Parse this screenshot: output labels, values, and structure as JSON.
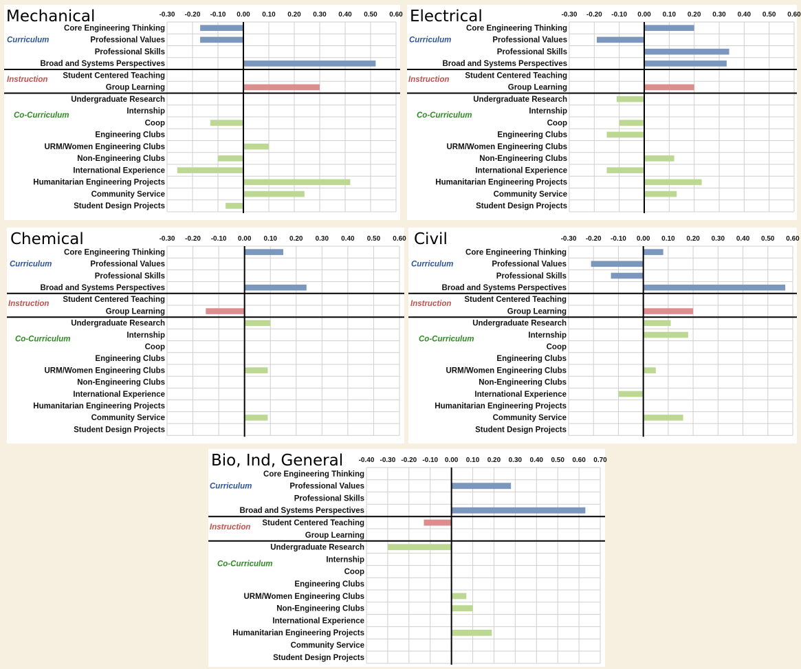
{
  "colors": {
    "curriculum": "#7b97bd",
    "instruction": "#dc8d8d",
    "co_curriculum": "#bcd892",
    "curriculum_label": "#2f5597",
    "instruction_label": "#c0504d",
    "co_curriculum_label": "#2e8b22"
  },
  "group_labels": {
    "curriculum": "Curriculum",
    "instruction": "Instruction",
    "co_curriculum": "Co-Curriculum"
  },
  "chart_data": [
    {
      "type": "bar",
      "orientation": "horizontal",
      "title": "Mechanical",
      "xlim": [
        -0.3,
        0.6
      ],
      "ticks": [
        "-0.30",
        "-0.20",
        "-0.10",
        "0.00",
        "0.10",
        "0.20",
        "0.30",
        "0.40",
        "0.50",
        "0.60"
      ],
      "grid": true,
      "categories": [
        "Core Engineering Thinking",
        "Professional Values",
        "Professional Skills",
        "Broad and Systems Perspectives",
        "Student Centered Teaching",
        "Group Learning",
        "Undergraduate Research",
        "Internship",
        "Coop",
        "Engineering Clubs",
        "URM/Women Engineering Clubs",
        "Non-Engineering Clubs",
        "International Experience",
        "Humanitarian Engineering Projects",
        "Community Service",
        "Student Design Projects"
      ],
      "groups": [
        "curriculum",
        "curriculum",
        "curriculum",
        "curriculum",
        "instruction",
        "instruction",
        "co_curriculum",
        "co_curriculum",
        "co_curriculum",
        "co_curriculum",
        "co_curriculum",
        "co_curriculum",
        "co_curriculum",
        "co_curriculum",
        "co_curriculum",
        "co_curriculum"
      ],
      "values": [
        -0.17,
        -0.17,
        null,
        0.52,
        null,
        0.3,
        null,
        null,
        -0.13,
        null,
        0.1,
        -0.1,
        -0.26,
        0.42,
        0.24,
        -0.07
      ]
    },
    {
      "type": "bar",
      "orientation": "horizontal",
      "title": "Electrical",
      "xlim": [
        -0.3,
        0.6
      ],
      "ticks": [
        "-0.30",
        "-0.20",
        "-0.10",
        "0.00",
        "0.10",
        "0.20",
        "0.30",
        "0.40",
        "0.50",
        "0.60"
      ],
      "grid": true,
      "categories": [
        "Core Engineering Thinking",
        "Professional Values",
        "Professional Skills",
        "Broad and Systems Perspectives",
        "Student Centered Teaching",
        "Group Learning",
        "Undergraduate Research",
        "Internship",
        "Coop",
        "Engineering Clubs",
        "URM/Women Engineering Clubs",
        "Non-Engineering Clubs",
        "International Experience",
        "Humanitarian Engineering Projects",
        "Community Service",
        "Student Design Projects"
      ],
      "groups": [
        "curriculum",
        "curriculum",
        "curriculum",
        "curriculum",
        "instruction",
        "instruction",
        "co_curriculum",
        "co_curriculum",
        "co_curriculum",
        "co_curriculum",
        "co_curriculum",
        "co_curriculum",
        "co_curriculum",
        "co_curriculum",
        "co_curriculum",
        "co_curriculum"
      ],
      "values": [
        0.2,
        -0.19,
        0.34,
        0.33,
        null,
        0.2,
        -0.11,
        null,
        -0.1,
        -0.15,
        null,
        0.12,
        -0.15,
        0.23,
        0.13,
        null
      ]
    },
    {
      "type": "bar",
      "orientation": "horizontal",
      "title": "Chemical",
      "xlim": [
        -0.3,
        0.6
      ],
      "ticks": [
        "-0.30",
        "-0.20",
        "-0.10",
        "0.00",
        "0.10",
        "0.20",
        "0.30",
        "0.40",
        "0.50",
        "0.60"
      ],
      "grid": true,
      "categories": [
        "Core Engineering Thinking",
        "Professional Values",
        "Professional Skills",
        "Broad and Systems Perspectives",
        "Student Centered Teaching",
        "Group Learning",
        "Undergraduate Research",
        "Internship",
        "Coop",
        "Engineering Clubs",
        "URM/Women Engineering Clubs",
        "Non-Engineering Clubs",
        "International Experience",
        "Humanitarian Engineering Projects",
        "Community Service",
        "Student Design Projects"
      ],
      "groups": [
        "curriculum",
        "curriculum",
        "curriculum",
        "curriculum",
        "instruction",
        "instruction",
        "co_curriculum",
        "co_curriculum",
        "co_curriculum",
        "co_curriculum",
        "co_curriculum",
        "co_curriculum",
        "co_curriculum",
        "co_curriculum",
        "co_curriculum",
        "co_curriculum"
      ],
      "values": [
        0.15,
        null,
        null,
        0.24,
        null,
        -0.15,
        0.1,
        null,
        null,
        null,
        0.09,
        null,
        null,
        null,
        0.09,
        null
      ]
    },
    {
      "type": "bar",
      "orientation": "horizontal",
      "title": "Civil",
      "xlim": [
        -0.3,
        0.6
      ],
      "ticks": [
        "-0.30",
        "-0.20",
        "-0.10",
        "0.00",
        "0.10",
        "0.20",
        "0.30",
        "0.40",
        "0.50",
        "0.60"
      ],
      "grid": true,
      "categories": [
        "Core Engineering Thinking",
        "Professional Values",
        "Professional Skills",
        "Broad and Systems Perspectives",
        "Student Centered Teaching",
        "Group Learning",
        "Undergraduate Research",
        "Internship",
        "Coop",
        "Engineering Clubs",
        "URM/Women Engineering Clubs",
        "Non-Engineering Clubs",
        "International Experience",
        "Humanitarian Engineering Projects",
        "Community Service",
        "Student Design Projects"
      ],
      "groups": [
        "curriculum",
        "curriculum",
        "curriculum",
        "curriculum",
        "instruction",
        "instruction",
        "co_curriculum",
        "co_curriculum",
        "co_curriculum",
        "co_curriculum",
        "co_curriculum",
        "co_curriculum",
        "co_curriculum",
        "co_curriculum",
        "co_curriculum",
        "co_curriculum"
      ],
      "values": [
        0.08,
        -0.21,
        -0.13,
        0.57,
        null,
        0.2,
        0.11,
        0.18,
        null,
        null,
        0.05,
        null,
        -0.1,
        null,
        0.16,
        null
      ]
    },
    {
      "type": "bar",
      "orientation": "horizontal",
      "title": "Bio, Ind, General",
      "xlim": [
        -0.4,
        0.7
      ],
      "ticks": [
        "-0.40",
        "-0.30",
        "-0.20",
        "-0.10",
        "0.00",
        "0.10",
        "0.20",
        "0.30",
        "0.40",
        "0.50",
        "0.60",
        "0.70"
      ],
      "grid": true,
      "categories": [
        "Core Engineering Thinking",
        "Professional Values",
        "Professional Skills",
        "Broad and Systems Perspectives",
        "Student Centered Teaching",
        "Group Learning",
        "Undergraduate Research",
        "Internship",
        "Coop",
        "Engineering Clubs",
        "URM/Women Engineering Clubs",
        "Non-Engineering Clubs",
        "International Experience",
        "Humanitarian Engineering Projects",
        "Community Service",
        "Student Design Projects"
      ],
      "groups": [
        "curriculum",
        "curriculum",
        "curriculum",
        "curriculum",
        "instruction",
        "instruction",
        "co_curriculum",
        "co_curriculum",
        "co_curriculum",
        "co_curriculum",
        "co_curriculum",
        "co_curriculum",
        "co_curriculum",
        "co_curriculum",
        "co_curriculum",
        "co_curriculum"
      ],
      "values": [
        null,
        0.28,
        null,
        0.63,
        -0.13,
        null,
        -0.3,
        null,
        null,
        null,
        0.07,
        0.1,
        null,
        0.19,
        null,
        null
      ]
    }
  ]
}
